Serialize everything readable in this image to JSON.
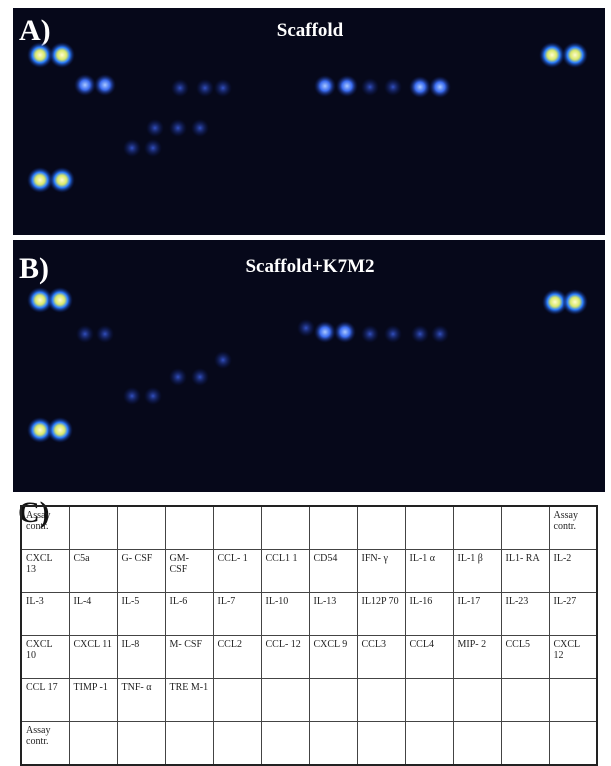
{
  "panels": [
    {
      "label": "A)",
      "title": "Scaffold"
    },
    {
      "label": "B)",
      "title": "Scaffold+K7M2"
    }
  ],
  "table": {
    "label": "C)",
    "rows": [
      [
        "Assay contr.",
        null,
        null,
        null,
        null,
        null,
        null,
        null,
        null,
        null,
        null,
        "Assay contr."
      ],
      [
        "CXCL 13",
        "C5a",
        "G- CSF",
        "GM- CSF",
        "CCL- 1",
        "CCL1 1",
        "CD54",
        "IFN- γ",
        "IL-1 α",
        "IL-1 β",
        "IL1- RA",
        "IL-2"
      ],
      [
        "IL-3",
        "IL-4",
        "IL-5",
        "IL-6",
        "IL-7",
        "IL-10",
        "IL-13",
        "IL12P 70",
        "IL-16",
        "IL-17",
        "IL-23",
        "IL-27"
      ],
      [
        "CXCL 10",
        "CXCL 11",
        "IL-8",
        "M- CSF",
        "CCL2",
        "CCL- 12",
        "CXCL 9",
        "CCL3",
        "CCL4",
        "MIP- 2",
        "CCL5",
        "CXCL 12"
      ],
      [
        "CCL 17",
        "TIMP -1",
        "TNF- α",
        "TRE M-1",
        null,
        null,
        null,
        null,
        null,
        null,
        null,
        null
      ],
      [
        "Assay contr.",
        null,
        null,
        null,
        null,
        null,
        null,
        null,
        null,
        null,
        null,
        null
      ]
    ]
  }
}
